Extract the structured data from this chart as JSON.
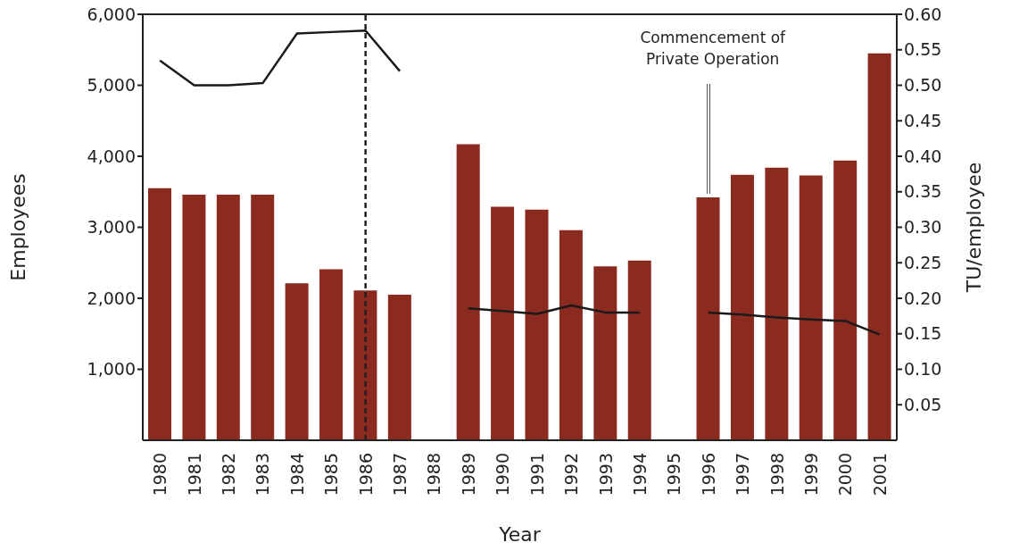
{
  "chart_data": {
    "type": "bar",
    "xlabel": "Year",
    "ylabel": "Employees",
    "y2label": "TU/employee",
    "categories": [
      "1980",
      "1981",
      "1982",
      "1983",
      "1984",
      "1985",
      "1986",
      "1987",
      "1988",
      "1989",
      "1990",
      "1991",
      "1992",
      "1993",
      "1994",
      "1995",
      "1996",
      "1997",
      "1998",
      "1999",
      "2000",
      "2001"
    ],
    "series": [
      {
        "color": "#8b2a1f",
        "values": [
          3550,
          3460,
          3460,
          3460,
          2210,
          2410,
          2110,
          2050,
          null,
          4170,
          3290,
          3250,
          2960,
          2450,
          2530,
          null,
          3420,
          3740,
          3840,
          3730,
          3940,
          5450
        ]
      },
      {
        "type": "line",
        "axis": "y2",
        "color": "#1a1a1a",
        "values": [
          0.535,
          0.5,
          0.5,
          0.503,
          0.573,
          0.575,
          0.577,
          0.52,
          null,
          0.186,
          0.182,
          0.178,
          0.19,
          0.18,
          0.18,
          null,
          0.18,
          0.177,
          0.173,
          0.17,
          0.168,
          0.149
        ]
      }
    ],
    "ylim": [
      0,
      6000
    ],
    "yticks": [
      {
        "value": 1000,
        "label": "1,000"
      },
      {
        "value": 2000,
        "label": "2,000"
      },
      {
        "value": 3000,
        "label": "3,000"
      },
      {
        "value": 4000,
        "label": "4,000"
      },
      {
        "value": 5000,
        "label": "5,000"
      },
      {
        "value": 6000,
        "label": "6,000"
      }
    ],
    "y2lim": [
      0,
      0.6
    ],
    "y2ticks": [
      {
        "value": 0.05,
        "label": "0.05"
      },
      {
        "value": 0.1,
        "label": "0.10"
      },
      {
        "value": 0.15,
        "label": "0.15"
      },
      {
        "value": 0.2,
        "label": "0.20"
      },
      {
        "value": 0.25,
        "label": "0.25"
      },
      {
        "value": 0.3,
        "label": "0.30"
      },
      {
        "value": 0.35,
        "label": "0.35"
      },
      {
        "value": 0.4,
        "label": "0.40"
      },
      {
        "value": 0.45,
        "label": "0.45"
      },
      {
        "value": 0.5,
        "label": "0.50"
      },
      {
        "value": 0.55,
        "label": "0.55"
      },
      {
        "value": 0.6,
        "label": "0.60"
      }
    ],
    "ref_lines": [
      {
        "axis": "x",
        "value": "1986",
        "color": "#222222",
        "line_style": "dashed"
      }
    ],
    "annotations": [
      {
        "text": "Commencement of Private Operation",
        "x": "1996",
        "y": 3420
      }
    ],
    "grid": false,
    "legend": false
  }
}
